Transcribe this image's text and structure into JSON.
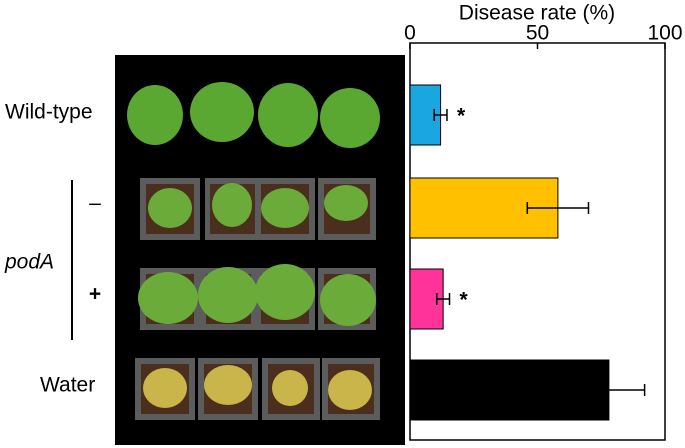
{
  "chart_data": {
    "type": "bar",
    "orientation": "horizontal",
    "x_label": "Disease rate (%)",
    "categories": [
      "Wild-type",
      "–",
      "+",
      "Water"
    ],
    "group_label": "podA",
    "values": [
      12,
      58,
      13,
      78
    ],
    "errors": [
      2.5,
      12,
      2.5,
      14
    ],
    "colors": [
      "#1aa7e0",
      "#ffc000",
      "#ff3399",
      "#000000"
    ],
    "annotations": [
      "*",
      null,
      "*",
      null
    ],
    "xlim": [
      0,
      100
    ],
    "xticks": [
      0,
      50,
      100
    ]
  }
}
